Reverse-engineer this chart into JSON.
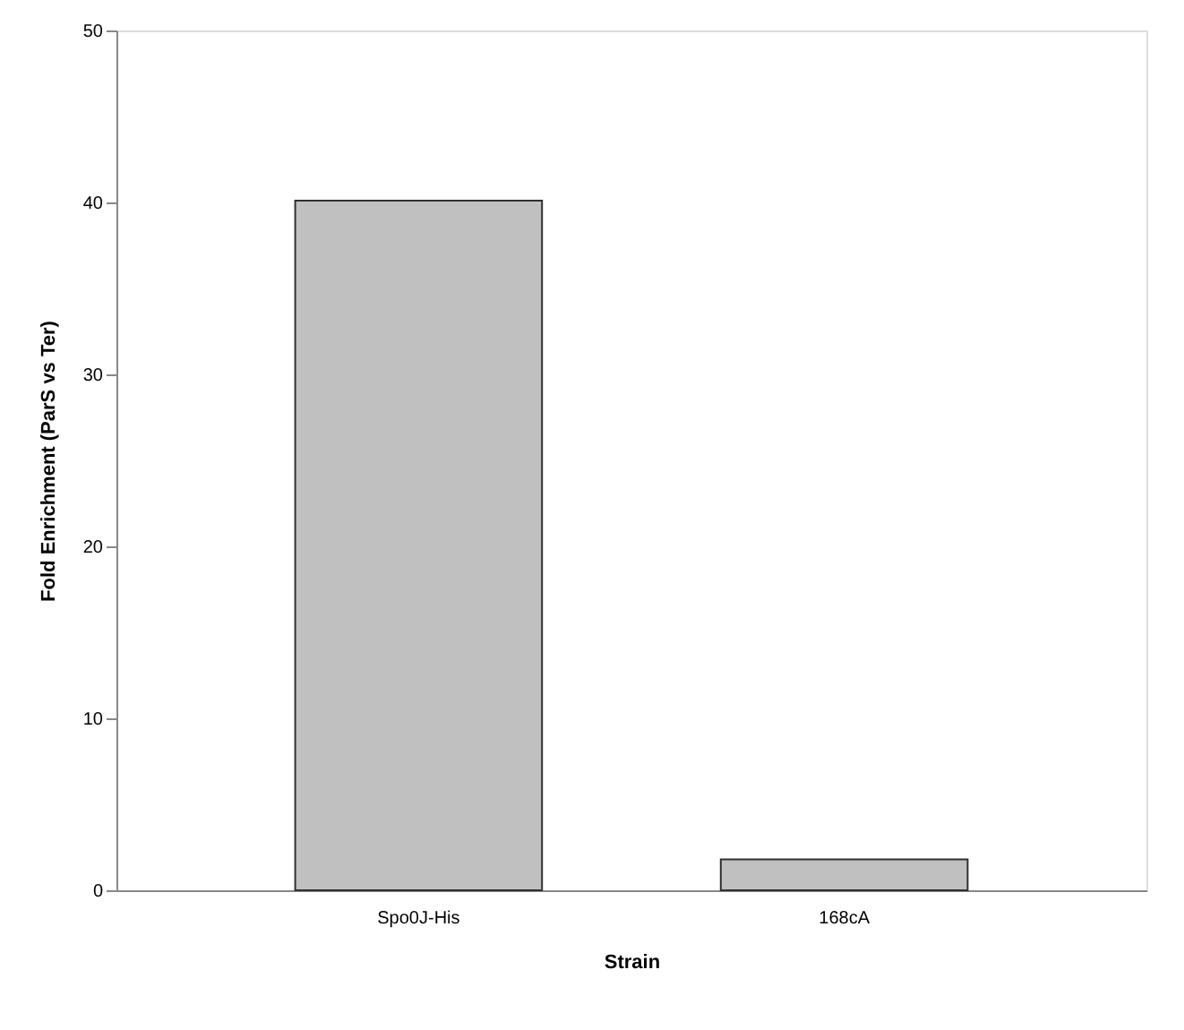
{
  "chart_data": {
    "type": "bar",
    "xlabel": "Strain",
    "ylabel": "Fold Enrichment (ParS vs Ter)",
    "categories": [
      "Spo0J-His",
      "168cA"
    ],
    "values": [
      40.1,
      1.8
    ],
    "color": "#c0c0c0",
    "ylim": [
      0,
      50
    ],
    "yticks": [
      0,
      10,
      20,
      30,
      40,
      50
    ],
    "grid": false
  }
}
